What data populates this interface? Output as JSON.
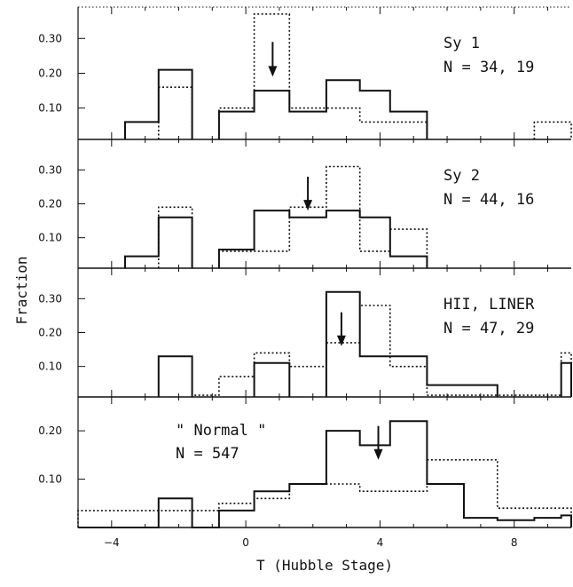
{
  "chart_data": {
    "type": "step-histogram",
    "xlabel": "T (Hubble Stage)",
    "ylabel": "Fraction",
    "xlim": [
      -5,
      9.7
    ],
    "x_ticks": [
      -4,
      0,
      4,
      8
    ],
    "panels": [
      {
        "ylim": [
          0.01,
          0.39
        ],
        "y_ticks": [
          {
            "v": 0.3,
            "t": "0.30"
          },
          {
            "v": 0.2,
            "t": "0.20"
          },
          {
            "v": 0.1,
            "t": "0.10"
          }
        ],
        "label_lines": [
          "Sy 1",
          "N = 34, 19"
        ],
        "arrow_x": 0.8,
        "arrow_y": [
          0.29,
          0.19
        ],
        "series": [
          {
            "style": "solid",
            "bins": [
              {
                "x0": -3.6,
                "x1": -2.6,
                "y": 0.06
              },
              {
                "x0": -2.6,
                "x1": -1.6,
                "y": 0.21
              },
              {
                "x0": -0.8,
                "x1": 0.25,
                "y": 0.09
              },
              {
                "x0": 0.25,
                "x1": 1.3,
                "y": 0.15
              },
              {
                "x0": 1.3,
                "x1": 2.4,
                "y": 0.09
              },
              {
                "x0": 2.4,
                "x1": 3.4,
                "y": 0.18
              },
              {
                "x0": 3.4,
                "x1": 4.3,
                "y": 0.15
              },
              {
                "x0": 4.3,
                "x1": 5.4,
                "y": 0.09
              }
            ]
          },
          {
            "style": "dotted",
            "bins": [
              {
                "x0": -2.6,
                "x1": -1.6,
                "y": 0.16
              },
              {
                "x0": -0.8,
                "x1": 0.25,
                "y": 0.1
              },
              {
                "x0": 0.25,
                "x1": 1.3,
                "y": 0.37
              },
              {
                "x0": 1.3,
                "x1": 2.4,
                "y": 0.1
              },
              {
                "x0": 2.4,
                "x1": 3.4,
                "y": 0.1
              },
              {
                "x0": 3.4,
                "x1": 4.3,
                "y": 0.06
              },
              {
                "x0": 4.3,
                "x1": 5.4,
                "y": 0.06
              },
              {
                "x0": 8.6,
                "x1": 9.7,
                "y": 0.06
              }
            ]
          }
        ]
      },
      {
        "ylim": [
          0.01,
          0.39
        ],
        "y_ticks": [
          {
            "v": 0.3,
            "t": "0.30"
          },
          {
            "v": 0.2,
            "t": "0.20"
          },
          {
            "v": 0.1,
            "t": "0.10"
          }
        ],
        "label_lines": [
          "Sy 2",
          "N = 44, 16"
        ],
        "arrow_x": 1.85,
        "arrow_y": [
          0.28,
          0.18
        ],
        "series": [
          {
            "style": "solid",
            "bins": [
              {
                "x0": -3.6,
                "x1": -2.6,
                "y": 0.045
              },
              {
                "x0": -2.6,
                "x1": -1.6,
                "y": 0.16
              },
              {
                "x0": -0.8,
                "x1": 0.25,
                "y": 0.065
              },
              {
                "x0": 0.25,
                "x1": 1.3,
                "y": 0.18
              },
              {
                "x0": 1.3,
                "x1": 2.4,
                "y": 0.16
              },
              {
                "x0": 2.4,
                "x1": 3.4,
                "y": 0.18
              },
              {
                "x0": 3.4,
                "x1": 4.3,
                "y": 0.16
              },
              {
                "x0": 4.3,
                "x1": 5.4,
                "y": 0.045
              }
            ]
          },
          {
            "style": "dotted",
            "bins": [
              {
                "x0": -2.6,
                "x1": -1.6,
                "y": 0.19
              },
              {
                "x0": -0.8,
                "x1": 0.25,
                "y": 0.06
              },
              {
                "x0": 0.25,
                "x1": 1.3,
                "y": 0.06
              },
              {
                "x0": 1.3,
                "x1": 2.4,
                "y": 0.19
              },
              {
                "x0": 2.4,
                "x1": 3.4,
                "y": 0.31
              },
              {
                "x0": 3.4,
                "x1": 4.3,
                "y": 0.06
              },
              {
                "x0": 4.3,
                "x1": 5.4,
                "y": 0.125
              }
            ]
          }
        ]
      },
      {
        "ylim": [
          0.01,
          0.39
        ],
        "y_ticks": [
          {
            "v": 0.3,
            "t": "0.30"
          },
          {
            "v": 0.2,
            "t": "0.20"
          },
          {
            "v": 0.1,
            "t": "0.10"
          }
        ],
        "label_lines": [
          "HII, LINER",
          "N = 47, 29"
        ],
        "arrow_x": 2.85,
        "arrow_y": [
          0.26,
          0.16
        ],
        "series": [
          {
            "style": "solid",
            "bins": [
              {
                "x0": -2.6,
                "x1": -1.6,
                "y": 0.13
              },
              {
                "x0": 0.25,
                "x1": 1.3,
                "y": 0.11
              },
              {
                "x0": 2.4,
                "x1": 3.4,
                "y": 0.32
              },
              {
                "x0": 3.4,
                "x1": 5.4,
                "y": 0.13
              },
              {
                "x0": 5.4,
                "x1": 7.5,
                "y": 0.045
              },
              {
                "x0": 9.4,
                "x1": 9.7,
                "y": 0.11
              }
            ]
          },
          {
            "style": "dotted",
            "bins": [
              {
                "x0": -1.6,
                "x1": -0.8,
                "y": 0.015
              },
              {
                "x0": -0.8,
                "x1": 0.25,
                "y": 0.07
              },
              {
                "x0": 0.25,
                "x1": 1.3,
                "y": 0.14
              },
              {
                "x0": 1.3,
                "x1": 2.4,
                "y": 0.1
              },
              {
                "x0": 2.4,
                "x1": 3.4,
                "y": 0.17
              },
              {
                "x0": 3.4,
                "x1": 4.3,
                "y": 0.28
              },
              {
                "x0": 4.3,
                "x1": 5.4,
                "y": 0.1
              },
              {
                "x0": 5.4,
                "x1": 9.4,
                "y": 0.015
              },
              {
                "x0": 9.4,
                "x1": 9.7,
                "y": 0.14
              }
            ]
          }
        ]
      },
      {
        "ylim": [
          0.0,
          0.27
        ],
        "y_ticks": [
          {
            "v": 0.2,
            "t": "0.20"
          },
          {
            "v": 0.1,
            "t": "0.10"
          }
        ],
        "label_lines": [
          "\" Normal \"",
          "N = 547"
        ],
        "label_pos": "left",
        "arrow_x": 3.95,
        "arrow_y": [
          0.21,
          0.14
        ],
        "series": [
          {
            "style": "solid",
            "bins": [
              {
                "x0": -5.0,
                "x1": -2.6,
                "y": 0.0
              },
              {
                "x0": -2.6,
                "x1": -1.6,
                "y": 0.06
              },
              {
                "x0": -1.6,
                "x1": -0.8,
                "y": 0.0
              },
              {
                "x0": -0.8,
                "x1": 0.25,
                "y": 0.035
              },
              {
                "x0": 0.25,
                "x1": 1.3,
                "y": 0.075
              },
              {
                "x0": 1.3,
                "x1": 2.4,
                "y": 0.09
              },
              {
                "x0": 2.4,
                "x1": 3.4,
                "y": 0.2
              },
              {
                "x0": 3.4,
                "x1": 4.3,
                "y": 0.17
              },
              {
                "x0": 4.3,
                "x1": 5.4,
                "y": 0.22
              },
              {
                "x0": 5.4,
                "x1": 6.5,
                "y": 0.09
              },
              {
                "x0": 6.5,
                "x1": 7.5,
                "y": 0.02
              },
              {
                "x0": 7.5,
                "x1": 8.6,
                "y": 0.015
              },
              {
                "x0": 8.6,
                "x1": 9.4,
                "y": 0.02
              },
              {
                "x0": 9.4,
                "x1": 9.7,
                "y": 0.025
              }
            ]
          },
          {
            "style": "dotted",
            "bins": [
              {
                "x0": -5.0,
                "x1": -0.8,
                "y": 0.035
              },
              {
                "x0": -0.8,
                "x1": 0.25,
                "y": 0.05
              },
              {
                "x0": 0.25,
                "x1": 1.3,
                "y": 0.06
              },
              {
                "x0": 1.3,
                "x1": 2.4,
                "y": 0.09
              },
              {
                "x0": 2.4,
                "x1": 3.4,
                "y": 0.09
              },
              {
                "x0": 3.4,
                "x1": 5.4,
                "y": 0.075
              },
              {
                "x0": 5.4,
                "x1": 7.5,
                "y": 0.14
              },
              {
                "x0": 7.5,
                "x1": 9.7,
                "y": 0.04
              }
            ]
          }
        ]
      }
    ]
  }
}
